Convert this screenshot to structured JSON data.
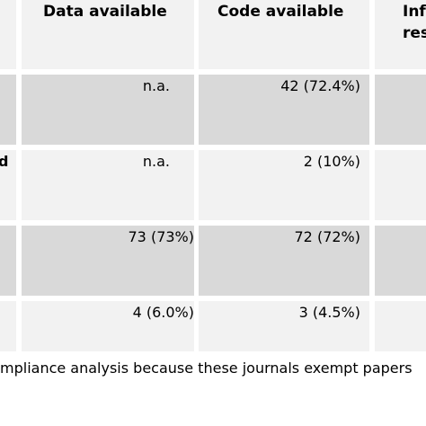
{
  "table": {
    "headers": [
      "",
      "Data available",
      "Code available",
      "Inf",
      "res"
    ],
    "rows": [
      {
        "label": "",
        "data": "n.a.",
        "code": "42 (72.4%)"
      },
      {
        "label": "d",
        "data": "n.a.",
        "code": "2 (10%)"
      },
      {
        "label": "",
        "data": "73 (73%)",
        "code": "72 (72%)"
      },
      {
        "label": "",
        "data": "4 (6.0%)",
        "code": "3 (4.5%)"
      }
    ]
  },
  "caption": "mpliance analysis because these journals exempt papers"
}
